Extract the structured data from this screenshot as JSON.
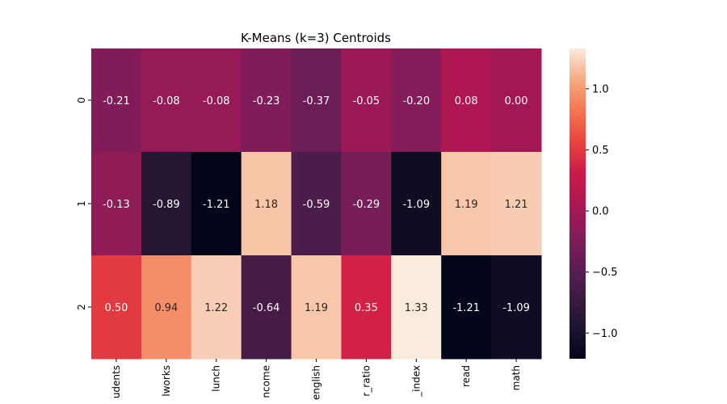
{
  "chart_data": {
    "type": "heatmap",
    "title": "K-Means (k=3) Centroids",
    "xlabel": "",
    "ylabel": "",
    "rows": [
      "0",
      "1",
      "2"
    ],
    "columns": [
      "udents",
      "lworks",
      "lunch",
      "ncome",
      "english",
      "r_ratio",
      "_index",
      "read",
      "math"
    ],
    "values": [
      [
        -0.21,
        -0.08,
        -0.08,
        -0.23,
        -0.37,
        -0.05,
        -0.2,
        0.08,
        0.0
      ],
      [
        -0.13,
        -0.89,
        -1.21,
        1.18,
        -0.59,
        -0.29,
        -1.09,
        1.19,
        1.21
      ],
      [
        0.5,
        0.94,
        1.22,
        -0.64,
        1.19,
        0.35,
        1.33,
        -1.21,
        -1.09
      ]
    ],
    "value_labels": [
      [
        "-0.21",
        "-0.08",
        "-0.08",
        "-0.23",
        "-0.37",
        "-0.05",
        "-0.20",
        "0.08",
        "0.00"
      ],
      [
        "-0.13",
        "-0.89",
        "-1.21",
        "1.18",
        "-0.59",
        "-0.29",
        "-1.09",
        "1.19",
        "1.21"
      ],
      [
        "0.50",
        "0.94",
        "1.22",
        "-0.64",
        "1.19",
        "0.35",
        "1.33",
        "-1.21",
        "-1.09"
      ]
    ],
    "colorbar": {
      "colormap": "rocket",
      "range": [
        -1.21,
        1.33
      ],
      "ticks": [
        1.0,
        0.5,
        0.0,
        -0.5,
        -1.0
      ],
      "tick_labels": [
        "1.0",
        "0.5",
        "0.0",
        "−0.5",
        "−1.0"
      ]
    },
    "grid": false
  }
}
